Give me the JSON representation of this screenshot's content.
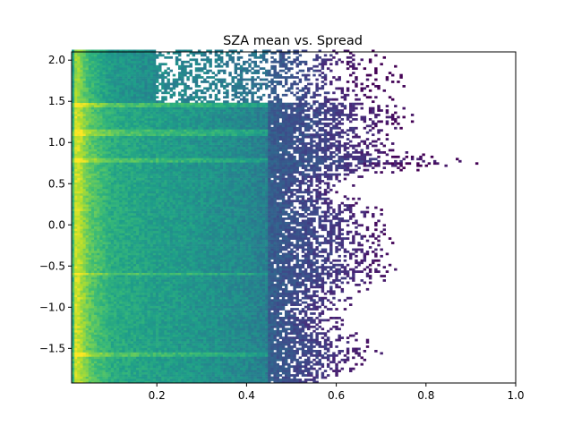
{
  "chart_data": {
    "type": "heatmap",
    "title": "SZA mean vs. Spread",
    "xlabel": "",
    "ylabel": "",
    "xlim": [
      0.01,
      1.0
    ],
    "ylim": [
      -1.92,
      2.1
    ],
    "xticks": [
      0.2,
      0.4,
      0.6,
      0.8,
      1.0
    ],
    "xtick_labels": [
      "0.2",
      "0.4",
      "0.6",
      "0.8",
      "1.0"
    ],
    "yticks": [
      -1.5,
      -1.0,
      -0.5,
      0.0,
      0.5,
      1.0,
      1.5,
      2.0
    ],
    "ytick_labels": [
      "−1.5",
      "−1.0",
      "−0.5",
      "0.0",
      "0.5",
      "1.0",
      "1.5",
      "2.0"
    ],
    "colormap": "viridis",
    "grid": false,
    "bins": {
      "x_bin_width": 0.00625,
      "y_bin_width": 0.0268
    },
    "density_profile": {
      "description_values": "relative log-density (0..1) at x = spread",
      "x": [
        0.01,
        0.02,
        0.05,
        0.1,
        0.2,
        0.3,
        0.4,
        0.5,
        0.6,
        0.7,
        0.8,
        0.94
      ],
      "density": [
        0.55,
        0.95,
        0.75,
        0.62,
        0.56,
        0.52,
        0.47,
        0.38,
        0.2,
        0.06,
        0.02,
        0.0
      ]
    },
    "max_extent_by_y": {
      "y": [
        -1.9,
        -1.75,
        -1.55,
        -1.4,
        -1.2,
        -1.0,
        -0.8,
        -0.6,
        -0.4,
        -0.2,
        0.0,
        0.2,
        0.4,
        0.6,
        0.75,
        0.9,
        1.1,
        1.3,
        1.45,
        1.6,
        1.8,
        2.0,
        2.1
      ],
      "x_max": [
        0.62,
        0.65,
        0.7,
        0.67,
        0.62,
        0.63,
        0.66,
        0.74,
        0.71,
        0.74,
        0.72,
        0.7,
        0.62,
        0.66,
        0.94,
        0.75,
        0.72,
        0.78,
        0.74,
        0.76,
        0.76,
        0.72,
        0.68
      ]
    },
    "bands": [
      {
        "y": [
          1.42,
          1.48
        ],
        "note": "bright streak"
      },
      {
        "y": [
          1.08,
          1.16
        ],
        "note": "bright streak"
      },
      {
        "y": [
          0.76,
          0.82
        ],
        "note": "bright streak"
      },
      {
        "y": [
          -0.62,
          -0.58
        ],
        "note": "bright streak"
      },
      {
        "y": [
          -1.6,
          -1.55
        ],
        "note": "bright streak"
      }
    ]
  }
}
